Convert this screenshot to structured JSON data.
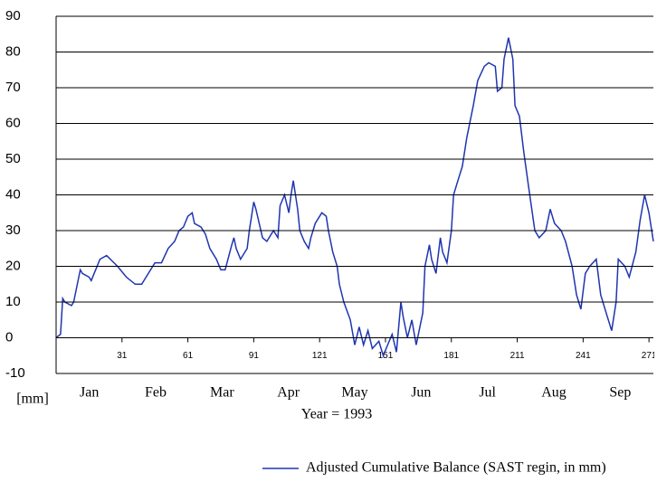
{
  "chart_data": {
    "type": "line",
    "xlabel": "Year = 1993",
    "x_unit_label": "[mm]",
    "month_labels": [
      "Jan",
      "Feb",
      "Mar",
      "Apr",
      "May",
      "Jun",
      "Jul",
      "Aug",
      "Sep"
    ],
    "x": [
      1,
      3,
      4,
      5,
      8,
      9,
      12,
      13,
      16,
      17,
      21,
      24,
      29,
      33,
      37,
      40,
      43,
      46,
      49,
      52,
      55,
      57,
      59,
      61,
      63,
      64,
      67,
      69,
      71,
      74,
      76,
      78,
      81,
      82,
      83,
      85,
      88,
      89,
      91,
      92,
      95,
      97,
      100,
      102,
      103,
      105,
      107,
      108,
      109,
      111,
      112,
      114,
      116,
      117,
      119,
      121,
      122,
      124,
      125,
      127,
      129,
      130,
      132,
      135,
      137,
      139,
      141,
      143,
      145,
      148,
      150,
      152,
      154,
      156,
      158,
      159,
      161,
      163,
      165,
      168,
      169,
      171,
      172,
      174,
      176,
      177,
      179,
      181,
      182,
      184,
      186,
      188,
      191,
      193,
      196,
      198,
      201,
      202,
      204,
      205,
      207,
      209,
      210,
      212,
      214,
      216,
      219,
      221,
      224,
      226,
      228,
      231,
      233,
      236,
      238,
      240,
      242,
      244,
      247,
      249,
      252,
      254,
      256,
      257,
      260,
      262,
      265,
      267,
      269,
      271,
      273
    ],
    "series": [
      {
        "name": "Adjusted Cumulative Balance (SAST regin, in mm)",
        "color": "#1f35b0",
        "values": [
          0,
          1,
          11,
          10,
          9,
          10,
          19,
          18,
          17,
          16,
          22,
          23,
          20,
          17,
          15,
          15,
          18,
          21,
          21,
          25,
          27,
          30,
          31,
          34,
          35,
          32,
          31,
          29,
          25,
          22,
          19,
          19,
          26,
          28,
          25,
          22,
          25,
          30,
          38,
          36,
          28,
          27,
          30,
          28,
          37,
          40,
          35,
          40,
          44,
          36,
          30,
          27,
          25,
          28,
          32,
          34,
          35,
          34,
          30,
          24,
          20,
          15,
          10,
          5,
          -2,
          3,
          -2,
          2,
          -3,
          -1,
          -5,
          -2,
          1,
          -4,
          10,
          6,
          0,
          5,
          -2,
          7,
          20,
          26,
          22,
          18,
          28,
          24,
          21,
          30,
          40,
          44,
          48,
          56,
          65,
          72,
          76,
          77,
          76,
          69,
          70,
          78,
          84,
          78,
          65,
          62,
          52,
          43,
          30,
          28,
          30,
          36,
          32,
          30,
          27,
          20,
          12,
          8,
          18,
          20,
          22,
          12,
          6,
          2,
          10,
          22,
          20,
          17,
          24,
          33,
          40,
          35,
          27
        ]
      }
    ],
    "xlim": [
      1,
      273
    ],
    "xticks": [
      31,
      61,
      91,
      121,
      151,
      181,
      211,
      241,
      271
    ],
    "ylim": [
      -10,
      90
    ],
    "yticks": [
      90,
      80,
      70,
      60,
      50,
      40,
      30,
      20,
      10,
      0,
      -10
    ],
    "grid": true
  }
}
